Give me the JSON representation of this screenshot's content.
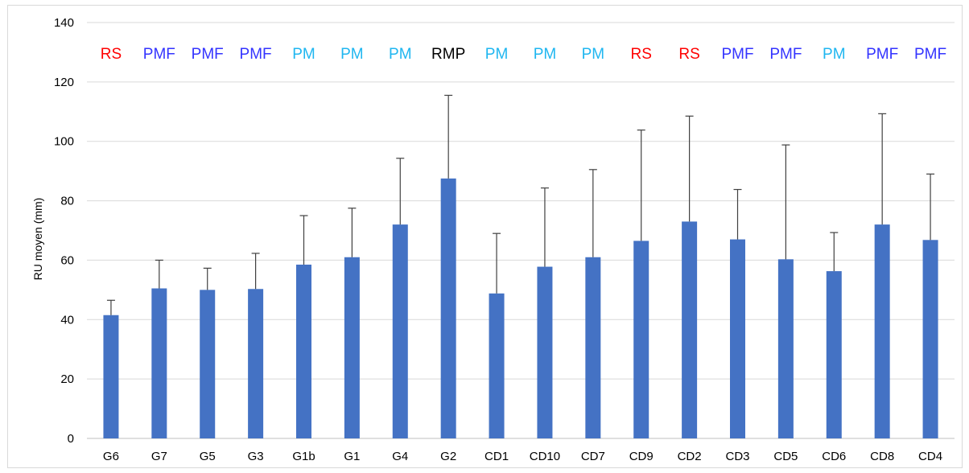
{
  "chart_data": {
    "type": "bar",
    "title": "",
    "xlabel": "",
    "ylabel": "RU moyen (mm)",
    "ylim": [
      0,
      140
    ],
    "yticks": [
      0,
      20,
      40,
      60,
      80,
      100,
      120,
      140
    ],
    "grid": true,
    "legend": "none",
    "bar_color": "#4472c4",
    "errorbar_color": "#404040",
    "categories": [
      "G6",
      "G7",
      "G5",
      "G3",
      "G1b",
      "G1",
      "G4",
      "G2",
      "CD1",
      "CD10",
      "CD7",
      "CD9",
      "CD2",
      "CD3",
      "CD5",
      "CD6",
      "CD8",
      "CD4"
    ],
    "values": [
      41.5,
      50.5,
      50,
      50.3,
      58.5,
      61,
      72,
      87.5,
      48.8,
      57.8,
      61,
      66.5,
      73,
      67,
      60.3,
      56.3,
      72,
      66.8
    ],
    "error_upper": [
      46.5,
      60,
      57.3,
      62.3,
      75,
      77.5,
      94.3,
      115.5,
      69,
      84.3,
      90.5,
      103.8,
      108.5,
      83.8,
      98.8,
      69.3,
      109.3,
      89
    ],
    "annotations": [
      "RS",
      "PMF",
      "PMF",
      "PMF",
      "PM",
      "PM",
      "PM",
      "RMP",
      "PM",
      "PM",
      "PM",
      "RS",
      "RS",
      "PMF",
      "PMF",
      "PM",
      "PMF",
      "PMF"
    ],
    "annotation_colors": {
      "RS": "#ff0000",
      "PMF": "#3333ff",
      "PM": "#1fb6f0",
      "RMP": "#000000"
    }
  }
}
